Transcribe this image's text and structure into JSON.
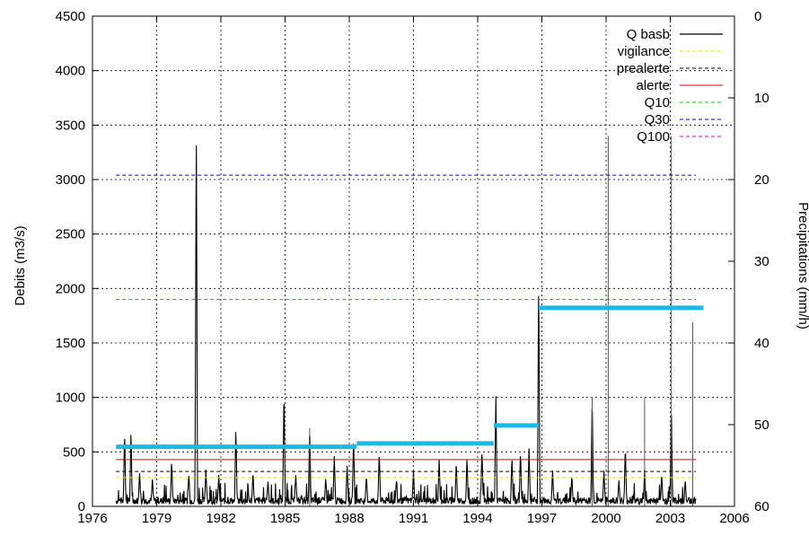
{
  "chart_data": {
    "type": "line",
    "title": "",
    "xlabel": "",
    "ylabel": "Debits (m3/s)",
    "y2label": "Precipitations (mm/h)",
    "xlim": [
      1976,
      2006
    ],
    "ylim": [
      0,
      4500
    ],
    "y2lim": [
      60,
      0
    ],
    "y2_inverted": true,
    "grid": true,
    "legend_position": "top-right",
    "x_ticks": [
      "1976",
      "1979",
      "1982",
      "1985",
      "1988",
      "1991",
      "1994",
      "1997",
      "2000",
      "2003",
      "2006"
    ],
    "y_ticks": [
      "0",
      "500",
      "1000",
      "1500",
      "2000",
      "2500",
      "3000",
      "3500",
      "4000",
      "4500"
    ],
    "y2_ticks": [
      "0",
      "10",
      "20",
      "30",
      "40",
      "50",
      "60"
    ],
    "thresholds": [
      {
        "name": "vigilance",
        "value": 265,
        "x_range": [
          1977.1,
          2004.2
        ],
        "color": "#e8e000",
        "style": "dashed"
      },
      {
        "name": "prealerte",
        "value": 320,
        "x_range": [
          1977.1,
          2004.2
        ],
        "color": "#000000",
        "style": "dashed"
      },
      {
        "name": "alerte",
        "value": 430,
        "x_range": [
          1977.1,
          2004.2
        ],
        "color": "#e00000",
        "style": "solid"
      },
      {
        "name": "Q10",
        "value": 1900,
        "x_range": [
          1977.1,
          2004.2
        ],
        "color": "#00cc00",
        "style": "dashed"
      },
      {
        "name": "Q30",
        "value": 3040,
        "x_range": [
          1977.1,
          2004.2
        ],
        "color": "#0000cc",
        "style": "dashed"
      },
      {
        "name": "Q100",
        "value": null,
        "x_range": [
          1977.1,
          2004.2
        ],
        "color": "#e000e0",
        "style": "dashed"
      }
    ],
    "q_basb_series": {
      "name": "Q basb",
      "color": "#000000",
      "base_noise": [
        20,
        110
      ],
      "peaks": [
        {
          "x": 1977.5,
          "y": 650
        },
        {
          "x": 1977.8,
          "y": 650
        },
        {
          "x": 1978.2,
          "y": 280
        },
        {
          "x": 1978.8,
          "y": 220
        },
        {
          "x": 1979.7,
          "y": 390
        },
        {
          "x": 1980.5,
          "y": 270
        },
        {
          "x": 1980.85,
          "y": 3590
        },
        {
          "x": 1981.3,
          "y": 300
        },
        {
          "x": 1981.9,
          "y": 250
        },
        {
          "x": 1982.7,
          "y": 710
        },
        {
          "x": 1983.5,
          "y": 280
        },
        {
          "x": 1984.2,
          "y": 200
        },
        {
          "x": 1984.95,
          "y": 1060
        },
        {
          "x": 1985.5,
          "y": 250
        },
        {
          "x": 1986.15,
          "y": 720
        },
        {
          "x": 1986.9,
          "y": 230
        },
        {
          "x": 1987.3,
          "y": 430
        },
        {
          "x": 1987.9,
          "y": 340
        },
        {
          "x": 1988.2,
          "y": 620
        },
        {
          "x": 1988.8,
          "y": 250
        },
        {
          "x": 1989.4,
          "y": 480
        },
        {
          "x": 1990.2,
          "y": 200
        },
        {
          "x": 1991.0,
          "y": 300
        },
        {
          "x": 1992.2,
          "y": 400
        },
        {
          "x": 1993.0,
          "y": 380
        },
        {
          "x": 1993.5,
          "y": 420
        },
        {
          "x": 1994.2,
          "y": 500
        },
        {
          "x": 1994.85,
          "y": 980
        },
        {
          "x": 1995.6,
          "y": 420
        },
        {
          "x": 1996.0,
          "y": 480
        },
        {
          "x": 1996.4,
          "y": 500
        },
        {
          "x": 1996.85,
          "y": 2090
        },
        {
          "x": 1997.5,
          "y": 300
        },
        {
          "x": 1998.4,
          "y": 250
        },
        {
          "x": 1999.35,
          "y": 1000
        },
        {
          "x": 1999.9,
          "y": 300
        },
        {
          "x": 2000.6,
          "y": 200
        },
        {
          "x": 2000.9,
          "y": 520
        },
        {
          "x": 2001.8,
          "y": 300
        },
        {
          "x": 2002.6,
          "y": 260
        },
        {
          "x": 2003.05,
          "y": 920
        },
        {
          "x": 2003.7,
          "y": 200
        }
      ],
      "thin_lines": [
        {
          "x": 1986.15,
          "y": 720
        },
        {
          "x": 1999.35,
          "y": 1000
        },
        {
          "x": 2000.1,
          "y": 3400
        },
        {
          "x": 2001.8,
          "y": 1000
        },
        {
          "x": 2003.05,
          "y": 3400
        },
        {
          "x": 2004.05,
          "y": 1690
        }
      ]
    },
    "precipitation_steps": [
      {
        "x_start": 1977.1,
        "x_end": 1988.35,
        "value": 52.7
      },
      {
        "x_start": 1988.35,
        "x_end": 1994.75,
        "value": 52.3
      },
      {
        "x_start": 1994.75,
        "x_end": 1996.85,
        "value": 50.1
      },
      {
        "x_start": 1996.85,
        "x_end": 2004.55,
        "value": 35.7
      }
    ],
    "precipitation_color": "#1cb8e6",
    "legend": [
      {
        "label": "Q basb",
        "color": "#000000",
        "style": "solid"
      },
      {
        "label": "vigilance",
        "color": "#e8e000",
        "style": "dashed"
      },
      {
        "label": "prealerte",
        "color": "#000000",
        "style": "dashed"
      },
      {
        "label": "alerte",
        "color": "#e00000",
        "style": "solid"
      },
      {
        "label": "Q10",
        "color": "#00cc00",
        "style": "dashed"
      },
      {
        "label": "Q30",
        "color": "#0000cc",
        "style": "dashed"
      },
      {
        "label": "Q100",
        "color": "#e000e0",
        "style": "dashed"
      }
    ]
  }
}
